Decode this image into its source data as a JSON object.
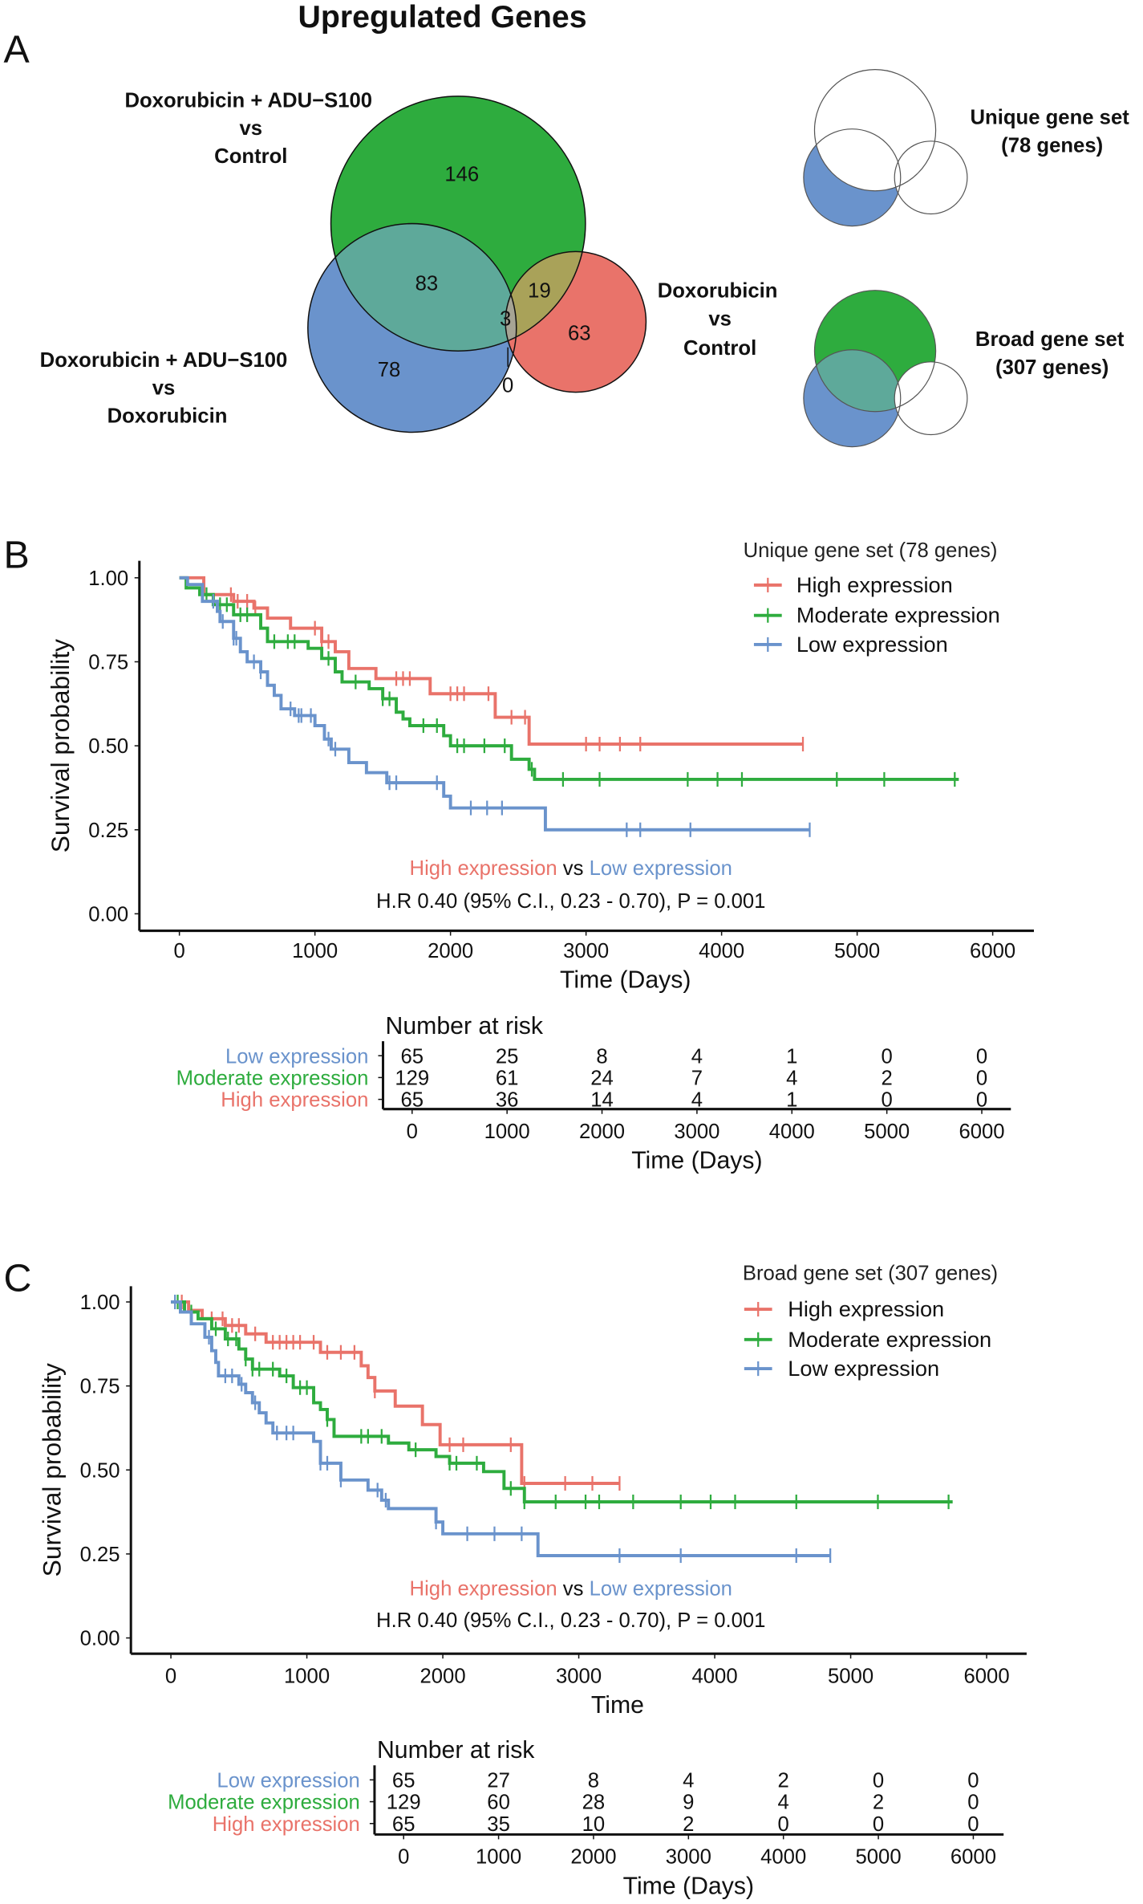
{
  "panel_a": {
    "letter": "A",
    "title": "Upregulated Genes",
    "set_labels": {
      "green": [
        "Doxorubicin + ADU−S100",
        "vs",
        "Control"
      ],
      "blue": [
        "Doxorubicin + ADU−S100",
        "vs",
        "Doxorubicin"
      ],
      "red": [
        "Doxorubicin",
        "vs",
        "Control"
      ]
    },
    "counts": {
      "green_only": "146",
      "green_blue": "83",
      "green_red": "19",
      "all_three": "3",
      "red_only": "63",
      "blue_only": "78",
      "blue_red": "0"
    },
    "unique_label": [
      "Unique gene set",
      "(78 genes)"
    ],
    "broad_label": [
      "Broad gene set",
      "(307 genes)"
    ],
    "colors": {
      "green": "#2eac3e",
      "blue": "#6a93cc",
      "red": "#e9736a",
      "green_blue": "#5ea99a",
      "green_red": "#a9a259",
      "triple": "#a6a494"
    }
  },
  "chart_data": [
    {
      "type": "line",
      "letter": "B",
      "legend_title": "Unique gene set (78 genes)",
      "legend_placement": "top-right",
      "xlabel": "Time (Days)",
      "ylabel": "Survival probability",
      "xlim": [
        0,
        6000
      ],
      "ylim": [
        0,
        1
      ],
      "xticks": [
        "0",
        "1000",
        "2000",
        "3000",
        "4000",
        "5000",
        "6000"
      ],
      "yticks": [
        "0.00",
        "0.25",
        "0.50",
        "0.75",
        "1.00"
      ],
      "annotation": {
        "a": "High expression",
        "vs": "vs",
        "b": "Low expression",
        "hr": "H.R 0.40 (95% C.I., 0.23 - 0.70), P = 0.001"
      },
      "series": [
        {
          "name": "High expression",
          "color": "#e9736a",
          "steps": [
            [
              0,
              1.0
            ],
            [
              180,
              0.95
            ],
            [
              400,
              0.93
            ],
            [
              550,
              0.91
            ],
            [
              650,
              0.88
            ],
            [
              820,
              0.85
            ],
            [
              1050,
              0.81
            ],
            [
              1150,
              0.78
            ],
            [
              1250,
              0.73
            ],
            [
              1450,
              0.7
            ],
            [
              1850,
              0.655
            ],
            [
              2330,
              0.585
            ],
            [
              2580,
              0.505
            ],
            [
              4600,
              0.505
            ]
          ],
          "censor": [
            380,
            430,
            500,
            560,
            1000,
            1050,
            1100,
            1600,
            1650,
            1700,
            2000,
            2050,
            2100,
            2280,
            2450,
            2550,
            3000,
            3100,
            3250,
            3400,
            4600
          ]
        },
        {
          "name": "Moderate expression",
          "color": "#2eac3e",
          "steps": [
            [
              0,
              1.0
            ],
            [
              50,
              0.97
            ],
            [
              150,
              0.95
            ],
            [
              250,
              0.92
            ],
            [
              400,
              0.89
            ],
            [
              600,
              0.85
            ],
            [
              650,
              0.81
            ],
            [
              950,
              0.79
            ],
            [
              1050,
              0.76
            ],
            [
              1150,
              0.72
            ],
            [
              1200,
              0.69
            ],
            [
              1400,
              0.67
            ],
            [
              1500,
              0.64
            ],
            [
              1600,
              0.6
            ],
            [
              1650,
              0.58
            ],
            [
              1700,
              0.56
            ],
            [
              1950,
              0.53
            ],
            [
              2000,
              0.5
            ],
            [
              2450,
              0.46
            ],
            [
              2580,
              0.43
            ],
            [
              2620,
              0.4
            ],
            [
              5750,
              0.4
            ]
          ],
          "censor": [
            200,
            300,
            350,
            450,
            500,
            700,
            800,
            850,
            1100,
            1300,
            1500,
            1550,
            1800,
            1900,
            2050,
            2100,
            2250,
            2400,
            2600,
            2830,
            3100,
            3750,
            3970,
            4150,
            4850,
            5200,
            5720
          ]
        },
        {
          "name": "Low expression",
          "color": "#6a93cc",
          "steps": [
            [
              0,
              1.0
            ],
            [
              60,
              0.98
            ],
            [
              170,
              0.93
            ],
            [
              280,
              0.9
            ],
            [
              300,
              0.87
            ],
            [
              400,
              0.82
            ],
            [
              450,
              0.78
            ],
            [
              500,
              0.75
            ],
            [
              600,
              0.72
            ],
            [
              650,
              0.68
            ],
            [
              700,
              0.65
            ],
            [
              750,
              0.61
            ],
            [
              850,
              0.59
            ],
            [
              1000,
              0.56
            ],
            [
              1070,
              0.52
            ],
            [
              1120,
              0.49
            ],
            [
              1250,
              0.45
            ],
            [
              1380,
              0.42
            ],
            [
              1530,
              0.39
            ],
            [
              1950,
              0.35
            ],
            [
              2000,
              0.315
            ],
            [
              2700,
              0.25
            ],
            [
              4650,
              0.25
            ]
          ],
          "censor": [
            250,
            320,
            400,
            420,
            550,
            600,
            820,
            880,
            900,
            970,
            1100,
            1150,
            1550,
            1600,
            1900,
            2150,
            2270,
            2380,
            3300,
            3400,
            3770,
            4650
          ]
        }
      ],
      "risk_table": {
        "title": "Number at risk",
        "xlabel": "Time (Days)",
        "xticks": [
          "0",
          "1000",
          "2000",
          "3000",
          "4000",
          "5000",
          "6000"
        ],
        "rows": [
          {
            "label": "Low expression",
            "color": "#6a93cc",
            "values": [
              "65",
              "25",
              "8",
              "4",
              "1",
              "0",
              "0"
            ]
          },
          {
            "label": "Moderate expression",
            "color": "#2eac3e",
            "values": [
              "129",
              "61",
              "24",
              "7",
              "4",
              "2",
              "0"
            ]
          },
          {
            "label": "High expression",
            "color": "#e9736a",
            "values": [
              "65",
              "36",
              "14",
              "4",
              "1",
              "0",
              "0"
            ]
          }
        ]
      }
    },
    {
      "type": "line",
      "letter": "C",
      "legend_title": "Broad gene set (307 genes)",
      "legend_placement": "top-right",
      "xlabel": "Time",
      "ylabel": "Survival probability",
      "xlim": [
        0,
        6000
      ],
      "ylim": [
        0,
        1
      ],
      "xticks": [
        "0",
        "1000",
        "2000",
        "3000",
        "4000",
        "5000",
        "6000"
      ],
      "yticks": [
        "0.00",
        "0.25",
        "0.50",
        "0.75",
        "1.00"
      ],
      "annotation": {
        "a": "High expression",
        "vs": "vs",
        "b": "Low expression",
        "hr": "H.R 0.40 (95% C.I., 0.23 - 0.70), P = 0.001"
      },
      "series": [
        {
          "name": "High expression",
          "color": "#e9736a",
          "steps": [
            [
              0,
              1.0
            ],
            [
              130,
              0.975
            ],
            [
              230,
              0.95
            ],
            [
              400,
              0.93
            ],
            [
              550,
              0.905
            ],
            [
              700,
              0.88
            ],
            [
              1100,
              0.85
            ],
            [
              1400,
              0.81
            ],
            [
              1450,
              0.775
            ],
            [
              1500,
              0.735
            ],
            [
              1650,
              0.69
            ],
            [
              1850,
              0.635
            ],
            [
              1980,
              0.575
            ],
            [
              2580,
              0.46
            ],
            [
              3300,
              0.46
            ]
          ],
          "censor": [
            80,
            300,
            380,
            450,
            500,
            620,
            750,
            800,
            850,
            900,
            950,
            1050,
            1150,
            1250,
            1350,
            1500,
            2050,
            2150,
            2500,
            2600,
            2900,
            3100,
            3300
          ]
        },
        {
          "name": "Moderate expression",
          "color": "#2eac3e",
          "steps": [
            [
              0,
              1.0
            ],
            [
              100,
              0.97
            ],
            [
              200,
              0.95
            ],
            [
              300,
              0.92
            ],
            [
              400,
              0.89
            ],
            [
              500,
              0.86
            ],
            [
              550,
              0.83
            ],
            [
              600,
              0.8
            ],
            [
              800,
              0.78
            ],
            [
              900,
              0.745
            ],
            [
              1050,
              0.7
            ],
            [
              1100,
              0.68
            ],
            [
              1150,
              0.65
            ],
            [
              1200,
              0.6
            ],
            [
              1600,
              0.58
            ],
            [
              1750,
              0.56
            ],
            [
              1950,
              0.54
            ],
            [
              2050,
              0.52
            ],
            [
              2300,
              0.495
            ],
            [
              2450,
              0.445
            ],
            [
              2600,
              0.405
            ],
            [
              5750,
              0.405
            ]
          ],
          "censor": [
            50,
            150,
            330,
            420,
            480,
            550,
            600,
            650,
            750,
            850,
            950,
            1000,
            1150,
            1400,
            1450,
            1550,
            1800,
            2050,
            2100,
            2250,
            2500,
            2600,
            2830,
            3050,
            3150,
            3400,
            3750,
            3970,
            4150,
            4600,
            5200,
            5720
          ]
        },
        {
          "name": "Low expression",
          "color": "#6a93cc",
          "steps": [
            [
              0,
              1.0
            ],
            [
              70,
              0.97
            ],
            [
              150,
              0.935
            ],
            [
              250,
              0.895
            ],
            [
              300,
              0.855
            ],
            [
              330,
              0.82
            ],
            [
              350,
              0.78
            ],
            [
              500,
              0.755
            ],
            [
              550,
              0.73
            ],
            [
              600,
              0.7
            ],
            [
              650,
              0.67
            ],
            [
              700,
              0.64
            ],
            [
              750,
              0.61
            ],
            [
              1050,
              0.585
            ],
            [
              1100,
              0.52
            ],
            [
              1250,
              0.47
            ],
            [
              1450,
              0.44
            ],
            [
              1550,
              0.41
            ],
            [
              1600,
              0.385
            ],
            [
              1950,
              0.345
            ],
            [
              2000,
              0.31
            ],
            [
              2700,
              0.245
            ],
            [
              4850,
              0.245
            ]
          ],
          "censor": [
            30,
            280,
            400,
            450,
            520,
            620,
            780,
            850,
            900,
            1100,
            1150,
            1250,
            1520,
            1580,
            1950,
            2180,
            2380,
            2580,
            3300,
            3750,
            4600,
            4850
          ]
        }
      ],
      "risk_table": {
        "title": "Number at risk",
        "xlabel": "Time (Days)",
        "xticks": [
          "0",
          "1000",
          "2000",
          "3000",
          "4000",
          "5000",
          "6000"
        ],
        "rows": [
          {
            "label": "Low expression",
            "color": "#6a93cc",
            "values": [
              "65",
              "27",
              "8",
              "4",
              "2",
              "0",
              "0"
            ]
          },
          {
            "label": "Moderate expression",
            "color": "#2eac3e",
            "values": [
              "129",
              "60",
              "28",
              "9",
              "4",
              "2",
              "0"
            ]
          },
          {
            "label": "High expression",
            "color": "#e9736a",
            "values": [
              "65",
              "35",
              "10",
              "2",
              "0",
              "0",
              "0"
            ]
          }
        ]
      }
    }
  ]
}
